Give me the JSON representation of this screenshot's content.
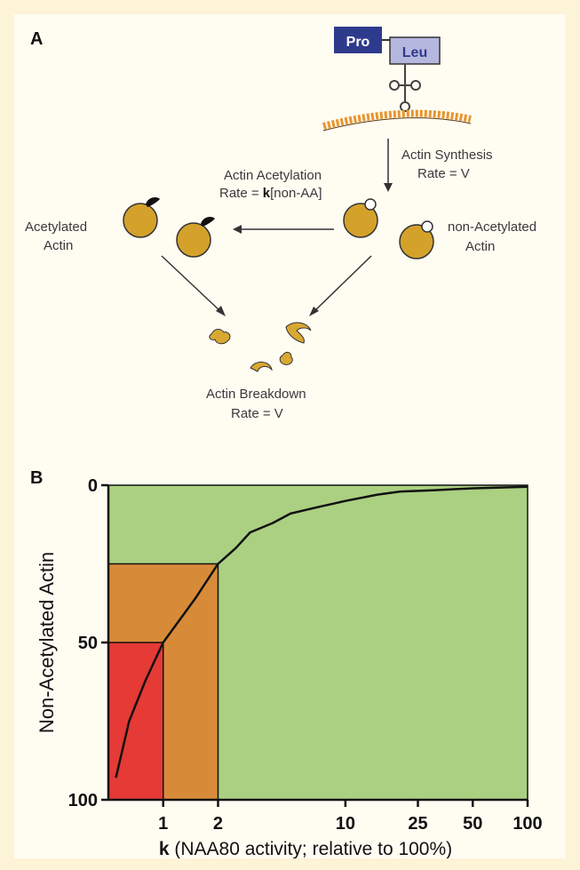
{
  "panel_a": {
    "letter": "A",
    "trna": {
      "aa1": "Pro",
      "aa2": "Leu"
    },
    "synthesis": {
      "line1": "Actin Synthesis",
      "line2": "Rate = V"
    },
    "acetylation": {
      "line1": "Actin Acetylation",
      "line2_prefix": "Rate = ",
      "line2_k": "k",
      "line2_suffix": "[non-AA]"
    },
    "acetylated": {
      "line1": "Acetylated",
      "line2": "Actin"
    },
    "non_acetylated": {
      "line1": "non-Acetylated",
      "line2": "Actin"
    },
    "breakdown": {
      "line1": "Actin Breakdown",
      "line2": "Rate = V"
    },
    "colors": {
      "actin": "#d4a22b",
      "fragment": "#d9a833",
      "trna_dark": "#2e3a8c",
      "trna_light": "#b6b7df",
      "mrna": "#e8962f"
    }
  },
  "panel_b": {
    "letter": "B",
    "colors": {
      "green": "#abd081",
      "orange": "#d78b39",
      "red": "#e53a35"
    },
    "chart_data": {
      "type": "line",
      "x_scale": "log",
      "xlim": [
        0.5,
        100
      ],
      "ylim": [
        0,
        100
      ],
      "y_inverted": true,
      "xlabel_bold": "k",
      "xlabel_rest": "(NAA80 activity; relative to 100%)",
      "ylabel": "Non-Acetylated Actin",
      "x_ticks": [
        {
          "value": 1,
          "label": "1"
        },
        {
          "value": 2,
          "label": "2"
        },
        {
          "value": 10,
          "label": "10"
        },
        {
          "value": 25,
          "label": "25"
        },
        {
          "value": 50,
          "label": "50"
        },
        {
          "value": 100,
          "label": "100"
        }
      ],
      "y_ticks": [
        {
          "value": 0,
          "label": "0"
        },
        {
          "value": 50,
          "label": "50"
        },
        {
          "value": 100,
          "label": "100"
        }
      ],
      "series": [
        {
          "x": [
            0.55,
            0.65,
            0.8,
            1,
            1.5,
            2,
            2.5,
            3,
            4,
            5,
            7,
            10,
            15,
            20,
            30,
            50,
            100
          ],
          "y": [
            93,
            75,
            62,
            50,
            36,
            25,
            20,
            15,
            12,
            9,
            7,
            5,
            3,
            2,
            1.6,
            1,
            0.5
          ]
        }
      ],
      "regions": [
        {
          "name": "green",
          "x_range": [
            0.5,
            100
          ],
          "y_range": [
            0,
            100
          ]
        },
        {
          "name": "orange",
          "x_range": [
            0.5,
            2
          ],
          "y_range": [
            25,
            100
          ]
        },
        {
          "name": "red",
          "x_range": [
            0.5,
            1
          ],
          "y_range": [
            50,
            100
          ]
        }
      ]
    }
  }
}
